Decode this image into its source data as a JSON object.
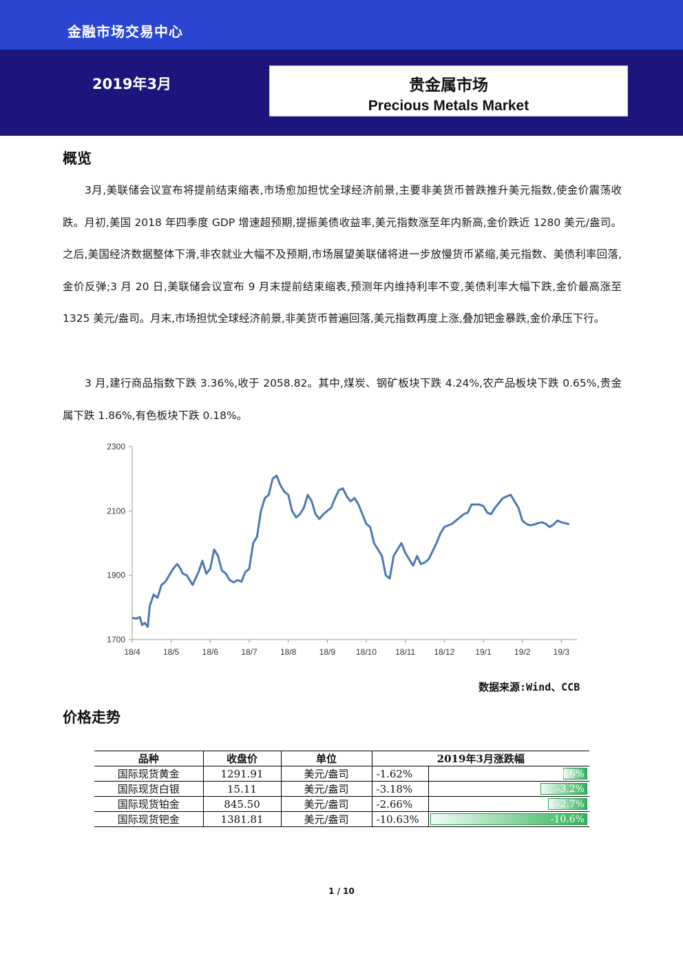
{
  "header": {
    "org": "金融市场交易中心",
    "date": "2019年3月",
    "title_zh": "贵金属市场",
    "title_en": "Precious Metals Market"
  },
  "overview": {
    "heading": "概览",
    "para1": "3月,美联储会议宣布将提前结束缩表,市场愈加担忧全球经济前景,主要非美货币普跌推升美元指数,使金价震荡收跌。月初,美国 2018 年四季度 GDP 增速超预期,提振美债收益率,美元指数涨至年内新高,金价跌近 1280 美元/盎司。之后,美国经济数据整体下滑,非农就业大幅不及预期,市场展望美联储将进一步放慢货币紧缩,美元指数、美债利率回落,金价反弹;3 月 20 日,美联储会议宣布 9 月末提前结束缩表,预测年内维持利率不变,美债利率大幅下跌,金价最高涨至 1325 美元/盎司。月末,市场担忧全球经济前景,非美货币普遍回落,美元指数再度上涨,叠加钯金暴跌,金价承压下行。",
    "para2": "3 月,建行商品指数下跌 3.36%,收于 2058.82。其中,煤炭、钢矿板块下跌 4.24%,农产品板块下跌 0.65%,贵金属下跌 1.86%,有色板块下跌 0.18%。"
  },
  "chart_data": {
    "type": "line",
    "title": "",
    "xlabel": "",
    "ylabel": "",
    "x_ticks": [
      "18/4",
      "18/5",
      "18/6",
      "18/7",
      "18/8",
      "18/9",
      "18/10",
      "18/11",
      "18/12",
      "19/1",
      "19/2",
      "19/3"
    ],
    "y_ticks": [
      1700,
      1900,
      2100,
      2300
    ],
    "ylim": [
      1700,
      2300
    ],
    "grid": false,
    "line_color": "#4a78b5",
    "series": [
      {
        "name": "",
        "x": [
          0,
          0.1,
          0.2,
          0.25,
          0.32,
          0.4,
          0.45,
          0.55,
          0.65,
          0.75,
          0.85,
          0.95,
          1.05,
          1.15,
          1.2,
          1.3,
          1.4,
          1.55,
          1.7,
          1.8,
          1.85,
          1.9,
          2.0,
          2.1,
          2.2,
          2.3,
          2.4,
          2.5,
          2.55,
          2.6,
          2.7,
          2.8,
          2.9,
          3.0,
          3.1,
          3.2,
          3.3,
          3.4,
          3.5,
          3.6,
          3.7,
          3.8,
          3.9,
          4.0,
          4.1,
          4.2,
          4.3,
          4.4,
          4.5,
          4.6,
          4.7,
          4.8,
          4.9,
          5.0,
          5.1,
          5.2,
          5.3,
          5.4,
          5.5,
          5.6,
          5.7,
          5.8,
          5.9,
          6.0,
          6.1,
          6.2,
          6.3,
          6.4,
          6.5,
          6.6,
          6.7,
          6.8,
          6.9,
          7.0,
          7.1,
          7.2,
          7.3,
          7.4,
          7.5,
          7.6,
          7.7,
          7.8,
          7.9,
          8.0,
          8.1,
          8.2,
          8.3,
          8.4,
          8.5,
          8.6,
          8.7,
          8.8,
          8.9,
          9.0,
          9.1,
          9.2,
          9.3,
          9.4,
          9.5,
          9.6,
          9.7,
          9.8,
          9.9,
          10.0,
          10.1,
          10.2,
          10.3,
          10.4,
          10.5,
          10.6,
          10.7,
          10.8,
          10.9,
          11.0,
          11.1,
          11.2
        ],
        "values": [
          1768,
          1765,
          1770,
          1745,
          1752,
          1740,
          1805,
          1840,
          1830,
          1870,
          1880,
          1900,
          1920,
          1935,
          1928,
          1905,
          1900,
          1870,
          1910,
          1945,
          1925,
          1905,
          1920,
          1980,
          1960,
          1915,
          1905,
          1885,
          1882,
          1878,
          1885,
          1880,
          1910,
          1920,
          2000,
          2020,
          2100,
          2140,
          2150,
          2200,
          2210,
          2180,
          2160,
          2150,
          2100,
          2080,
          2090,
          2110,
          2150,
          2130,
          2090,
          2075,
          2090,
          2100,
          2110,
          2140,
          2165,
          2170,
          2145,
          2130,
          2140,
          2120,
          2090,
          2060,
          2050,
          2000,
          1980,
          1960,
          1900,
          1890,
          1960,
          1980,
          2000,
          1970,
          1950,
          1930,
          1960,
          1935,
          1940,
          1950,
          1975,
          2000,
          2030,
          2050,
          2055,
          2060,
          2070,
          2080,
          2090,
          2095,
          2120,
          2120,
          2120,
          2115,
          2095,
          2090,
          2110,
          2125,
          2140,
          2145,
          2150,
          2130,
          2110,
          2070,
          2060,
          2055,
          2058,
          2062,
          2065,
          2060,
          2050,
          2058,
          2070,
          2065,
          2062,
          2059
        ]
      }
    ]
  },
  "source": "数据来源:Wind、CCB",
  "price": {
    "heading": "价格走势",
    "headers": [
      "品种",
      "收盘价",
      "单位",
      "2019年3月涨跌幅"
    ],
    "rows": [
      {
        "name": "国际现货黄金",
        "close": "1291.91",
        "unit": "美元/盎司",
        "change": "-1.62%",
        "bar_label": "-1.6%",
        "bar_pct": 1.62
      },
      {
        "name": "国际现货白银",
        "close": "15.11",
        "unit": "美元/盎司",
        "change": "-3.18%",
        "bar_label": "-3.2%",
        "bar_pct": 3.18
      },
      {
        "name": "国际现货铂金",
        "close": "845.50",
        "unit": "美元/盎司",
        "change": "-2.66%",
        "bar_label": "-2.7%",
        "bar_pct": 2.66
      },
      {
        "name": "国际现货钯金",
        "close": "1381.81",
        "unit": "美元/盎司",
        "change": "-10.63%",
        "bar_label": "-10.6%",
        "bar_pct": 10.63
      }
    ]
  },
  "footer": {
    "page": "1 / 10"
  }
}
